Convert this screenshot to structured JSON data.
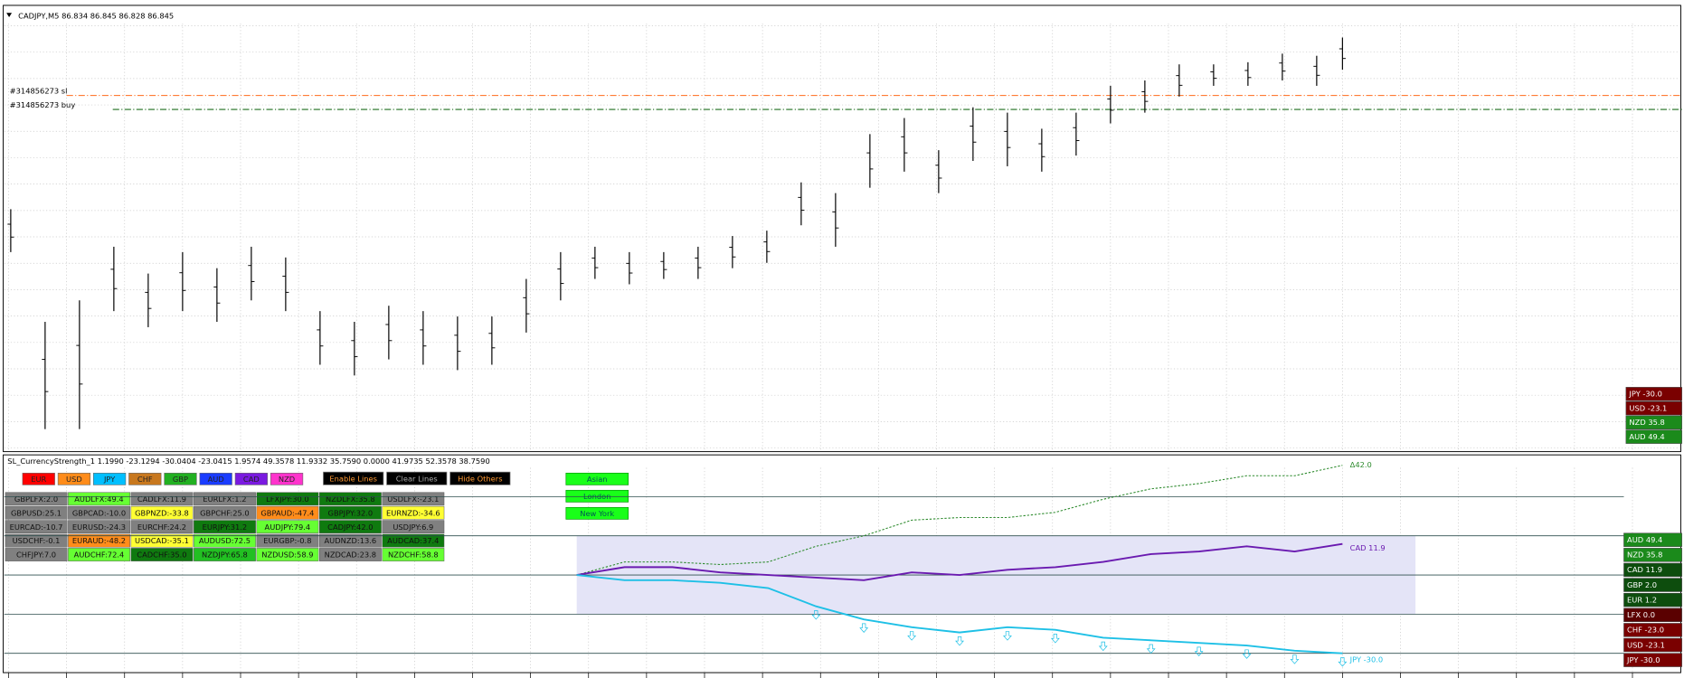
{
  "header": {
    "symbol_line": "CADJPY,M5  86.834 86.845 86.828 86.845"
  },
  "price_chart": {
    "type": "ohlc-bars",
    "ylim": [
      86.35,
      86.762
    ],
    "bars": [
      [
        86.535,
        86.575
      ],
      [
        86.37,
        86.47
      ],
      [
        86.37,
        86.49
      ],
      [
        86.48,
        86.54
      ],
      [
        86.465,
        86.515
      ],
      [
        86.48,
        86.535
      ],
      [
        86.47,
        86.52
      ],
      [
        86.49,
        86.54
      ],
      [
        86.48,
        86.53
      ],
      [
        86.43,
        86.48
      ],
      [
        86.42,
        86.47
      ],
      [
        86.435,
        86.485
      ],
      [
        86.43,
        86.48
      ],
      [
        86.425,
        86.475
      ],
      [
        86.43,
        86.475
      ],
      [
        86.46,
        86.51
      ],
      [
        86.49,
        86.535
      ],
      [
        86.51,
        86.54
      ],
      [
        86.505,
        86.535
      ],
      [
        86.51,
        86.535
      ],
      [
        86.51,
        86.54
      ],
      [
        86.52,
        86.55
      ],
      [
        86.525,
        86.555
      ],
      [
        86.56,
        86.6
      ],
      [
        86.54,
        86.59
      ],
      [
        86.595,
        86.645
      ],
      [
        86.61,
        86.66
      ],
      [
        86.59,
        86.63
      ],
      [
        86.62,
        86.67
      ],
      [
        86.615,
        86.665
      ],
      [
        86.61,
        86.65
      ],
      [
        86.625,
        86.665
      ],
      [
        86.655,
        86.69
      ],
      [
        86.665,
        86.695
      ],
      [
        86.68,
        86.71
      ],
      [
        86.69,
        86.71
      ],
      [
        86.69,
        86.712
      ],
      [
        86.695,
        86.72
      ],
      [
        86.69,
        86.718
      ],
      [
        86.705,
        86.735
      ]
    ],
    "order_lines": [
      {
        "label": "#314856273 sl",
        "price": 86.681,
        "color": "#ff6a1a"
      },
      {
        "label": "#314856273 buy",
        "price": 86.668,
        "color": "#1f6e1f"
      }
    ],
    "strength_boxes": [
      {
        "label": "JPY -30.0",
        "color": "#7a0000"
      },
      {
        "label": "USD -23.1",
        "color": "#7a0000"
      },
      {
        "label": "NZD 35.8",
        "color": "#1b8a1b"
      },
      {
        "label": "AUD 49.4",
        "color": "#1b8a1b"
      }
    ]
  },
  "indicator": {
    "title": "SL_CurrencyStrength_1 1.1990 -23.1294 -30.0404 -23.0415 1.9574 49.3578 11.9332 35.7590 0.0000 41.9735 52.3578 38.7590",
    "currency_buttons": [
      {
        "label": "EUR",
        "color": "#ff0000"
      },
      {
        "label": "USD",
        "color": "#ff8c1a"
      },
      {
        "label": "JPY",
        "color": "#00bfff"
      },
      {
        "label": "CHF",
        "color": "#c8781e"
      },
      {
        "label": "GBP",
        "color": "#22b022"
      },
      {
        "label": "AUD",
        "color": "#1a3cff"
      },
      {
        "label": "CAD",
        "color": "#7a1ae0"
      },
      {
        "label": "NZD",
        "color": "#ff33cc"
      }
    ],
    "action_buttons": [
      {
        "label": "Enable Lines",
        "color": "#ff9933"
      },
      {
        "label": "Clear Lines",
        "color": "#aaaaaa"
      },
      {
        "label": "Hide Others",
        "color": "#ff9933"
      }
    ],
    "session_buttons": [
      "Asian",
      "London",
      "New York"
    ],
    "pairs": [
      [
        {
          "text": "GBPLFX:2.0",
          "color": "#808080"
        },
        {
          "text": "AUDLFX:49.4",
          "color": "#66ff33"
        },
        {
          "text": "CADLFX:11.9",
          "color": "#808080"
        },
        {
          "text": "EURLFX:1.2",
          "color": "#808080"
        },
        {
          "text": "LFXJPY:30.0",
          "color": "#0f7a0f"
        },
        {
          "text": "NZDLFX:35.8",
          "color": "#0f7a0f"
        },
        {
          "text": "USDLFX:-23.1",
          "color": "#808080"
        }
      ],
      [
        {
          "text": "GBPUSD:25.1",
          "color": "#808080"
        },
        {
          "text": "GBPCAD:-10.0",
          "color": "#808080"
        },
        {
          "text": "GBPNZD:-33.8",
          "color": "#ffff33"
        },
        {
          "text": "GBPCHF:25.0",
          "color": "#808080"
        },
        {
          "text": "GBPAUD:-47.4",
          "color": "#ff8c1a"
        },
        {
          "text": "GBPJPY:32.0",
          "color": "#0f7a0f"
        },
        {
          "text": "EURNZD:-34.6",
          "color": "#ffff33"
        }
      ],
      [
        {
          "text": "EURCAD:-10.7",
          "color": "#808080"
        },
        {
          "text": "EURUSD:-24.3",
          "color": "#808080"
        },
        {
          "text": "EURCHF:24.2",
          "color": "#808080"
        },
        {
          "text": "EURJPY:31.2",
          "color": "#0f7a0f"
        },
        {
          "text": "AUDJPY:79.4",
          "color": "#66ff33"
        },
        {
          "text": "CADJPY:42.0",
          "color": "#0f7a0f"
        },
        {
          "text": "USDJPY:6.9",
          "color": "#808080"
        }
      ],
      [
        {
          "text": "USDCHF:-0.1",
          "color": "#808080"
        },
        {
          "text": "EURAUD:-48.2",
          "color": "#ff8c1a"
        },
        {
          "text": "USDCAD:-35.1",
          "color": "#ffff33"
        },
        {
          "text": "AUDUSD:72.5",
          "color": "#66ff33"
        },
        {
          "text": "EURGBP:-0.8",
          "color": "#808080"
        },
        {
          "text": "AUDNZD:13.6",
          "color": "#808080"
        },
        {
          "text": "AUDCAD:37.4",
          "color": "#0f7a0f"
        }
      ],
      [
        {
          "text": "CHFJPY:7.0",
          "color": "#808080"
        },
        {
          "text": "AUDCHF:72.4",
          "color": "#66ff33"
        },
        {
          "text": "CADCHF:35.0",
          "color": "#0f7a0f"
        },
        {
          "text": "NZDJPY:65.8",
          "color": "#22c022"
        },
        {
          "text": "NZDUSD:58.9",
          "color": "#66ff33"
        },
        {
          "text": "NZDCAD:23.8",
          "color": "#808080"
        },
        {
          "text": "NZDCHF:58.8",
          "color": "#66ff33"
        }
      ]
    ],
    "ylim": [
      -37.8,
      46
    ],
    "levels": [
      30,
      15,
      0,
      -15,
      -30
    ],
    "band": [
      -15,
      15
    ],
    "lines": [
      {
        "label": "Δ42.0",
        "color": "#2e8b2e",
        "dashed": true,
        "values": [
          0,
          5,
          5,
          4,
          5,
          11,
          15,
          21,
          22,
          22,
          24,
          29,
          33,
          35,
          38,
          38,
          42.0
        ]
      },
      {
        "label": "CAD  11.9",
        "color": "#6a1ab0",
        "dashed": false,
        "values": [
          0,
          3,
          3,
          1,
          0,
          -1,
          -2,
          1,
          0,
          2,
          3,
          5,
          8,
          9,
          11,
          9,
          11.9
        ]
      },
      {
        "label": "JPY  -30.0",
        "color": "#1ec0e6",
        "dashed": false,
        "values": [
          0,
          -2,
          -2,
          -3,
          -5,
          -12,
          -17,
          -20,
          -22,
          -20,
          -21,
          -24,
          -25,
          -26,
          -27,
          -29,
          -30.0
        ]
      }
    ],
    "strength_boxes": [
      {
        "label": "AUD 49.4",
        "color": "#1b8a1b"
      },
      {
        "label": "NZD 35.8",
        "color": "#1b8a1b"
      },
      {
        "label": "CAD 11.9",
        "color": "#0d4d0d"
      },
      {
        "label": "GBP 2.0",
        "color": "#0d4d0d"
      },
      {
        "label": "EUR 1.2",
        "color": "#0d4d0d"
      },
      {
        "label": "LFX 0.0",
        "color": "#5a0000"
      },
      {
        "label": "CHF -23.0",
        "color": "#7a0000"
      },
      {
        "label": "USD -23.1",
        "color": "#7a0000"
      },
      {
        "label": "JPY -30.0",
        "color": "#7a0000"
      }
    ]
  }
}
